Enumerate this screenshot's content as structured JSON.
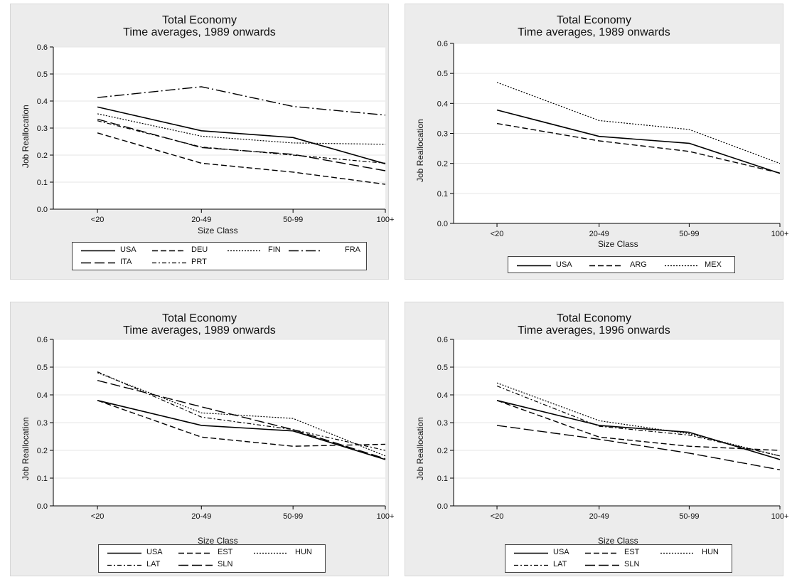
{
  "chart_data": [
    {
      "type": "line",
      "title": "Total Economy",
      "subtitle": "Time averages, 1989 onwards",
      "xlabel": "Size Class",
      "ylabel": "Job Reallocation",
      "categories": [
        "<20",
        "20-49",
        "50-99",
        "100+"
      ],
      "yticks": [
        "0.0",
        "0.1",
        "0.2",
        "0.3",
        "0.4",
        "0.5",
        "0.6"
      ],
      "ylim": [
        0,
        0.6
      ],
      "grid": true,
      "legend_position": "bottom",
      "series": [
        {
          "name": "USA",
          "style": "solid",
          "values": [
            0.378,
            0.29,
            0.265,
            0.168
          ]
        },
        {
          "name": "DEU",
          "style": "dash",
          "values": [
            0.282,
            0.17,
            0.137,
            0.092
          ]
        },
        {
          "name": "FIN",
          "style": "dot",
          "values": [
            0.353,
            0.27,
            0.245,
            0.24
          ]
        },
        {
          "name": "FRA",
          "style": "longdashdot",
          "values": [
            0.413,
            0.453,
            0.38,
            0.348
          ]
        },
        {
          "name": "ITA",
          "style": "longdash",
          "values": [
            0.333,
            0.228,
            0.203,
            0.142
          ]
        },
        {
          "name": "PRT",
          "style": "dashdot",
          "values": [
            0.327,
            0.23,
            0.2,
            0.17
          ]
        }
      ]
    },
    {
      "type": "line",
      "title": "Total Economy",
      "subtitle": "Time averages, 1989 onwards",
      "xlabel": "Size Class",
      "ylabel": "Job Reallocation",
      "categories": [
        "<20",
        "20-49",
        "50-99",
        "100+"
      ],
      "yticks": [
        "0.0",
        "0.1",
        "0.2",
        "0.3",
        "0.4",
        "0.5",
        "0.6"
      ],
      "ylim": [
        0,
        0.6
      ],
      "grid": true,
      "legend_position": "bottom",
      "series": [
        {
          "name": "USA",
          "style": "solid",
          "values": [
            0.378,
            0.29,
            0.267,
            0.167
          ]
        },
        {
          "name": "ARG",
          "style": "dash",
          "values": [
            0.333,
            0.275,
            0.24,
            0.168
          ]
        },
        {
          "name": "MEX",
          "style": "dot",
          "values": [
            0.47,
            0.343,
            0.313,
            0.2
          ]
        }
      ]
    },
    {
      "type": "line",
      "title": "Total Economy",
      "subtitle": "Time averages, 1989 onwards",
      "xlabel": "Size Class",
      "ylabel": "Job Reallocation",
      "categories": [
        "<20",
        "20-49",
        "50-99",
        "100+"
      ],
      "yticks": [
        "0.0",
        "0.1",
        "0.2",
        "0.3",
        "0.4",
        "0.5",
        "0.6"
      ],
      "ylim": [
        0,
        0.6
      ],
      "grid": true,
      "legend_position": "bottom",
      "series": [
        {
          "name": "USA",
          "style": "solid",
          "values": [
            0.38,
            0.29,
            0.27,
            0.167
          ]
        },
        {
          "name": "EST",
          "style": "dash",
          "values": [
            0.38,
            0.248,
            0.215,
            0.222
          ]
        },
        {
          "name": "HUN",
          "style": "dot",
          "values": [
            0.48,
            0.335,
            0.315,
            0.18
          ]
        },
        {
          "name": "LAT",
          "style": "dashdot",
          "values": [
            0.483,
            0.32,
            0.275,
            0.2
          ]
        },
        {
          "name": "SLN",
          "style": "longdash",
          "values": [
            0.452,
            0.357,
            0.275,
            0.17
          ]
        }
      ]
    },
    {
      "type": "line",
      "title": "Total Economy",
      "subtitle": "Time averages, 1996 onwards",
      "xlabel": "Size Class",
      "ylabel": "Job Reallocation",
      "categories": [
        "<20",
        "20-49",
        "50-99",
        "100+"
      ],
      "yticks": [
        "0.0",
        "0.1",
        "0.2",
        "0.3",
        "0.4",
        "0.5",
        "0.6"
      ],
      "ylim": [
        0,
        0.6
      ],
      "grid": true,
      "legend_position": "bottom",
      "series": [
        {
          "name": "USA",
          "style": "solid",
          "values": [
            0.38,
            0.29,
            0.265,
            0.167
          ]
        },
        {
          "name": "EST",
          "style": "dash",
          "values": [
            0.38,
            0.248,
            0.215,
            0.2
          ]
        },
        {
          "name": "HUN",
          "style": "dot",
          "values": [
            0.443,
            0.307,
            0.26,
            0.18
          ]
        },
        {
          "name": "LAT",
          "style": "dashdot",
          "values": [
            0.432,
            0.287,
            0.255,
            0.18
          ]
        },
        {
          "name": "SLN",
          "style": "longdash",
          "values": [
            0.29,
            0.24,
            0.19,
            0.13
          ]
        }
      ]
    }
  ]
}
